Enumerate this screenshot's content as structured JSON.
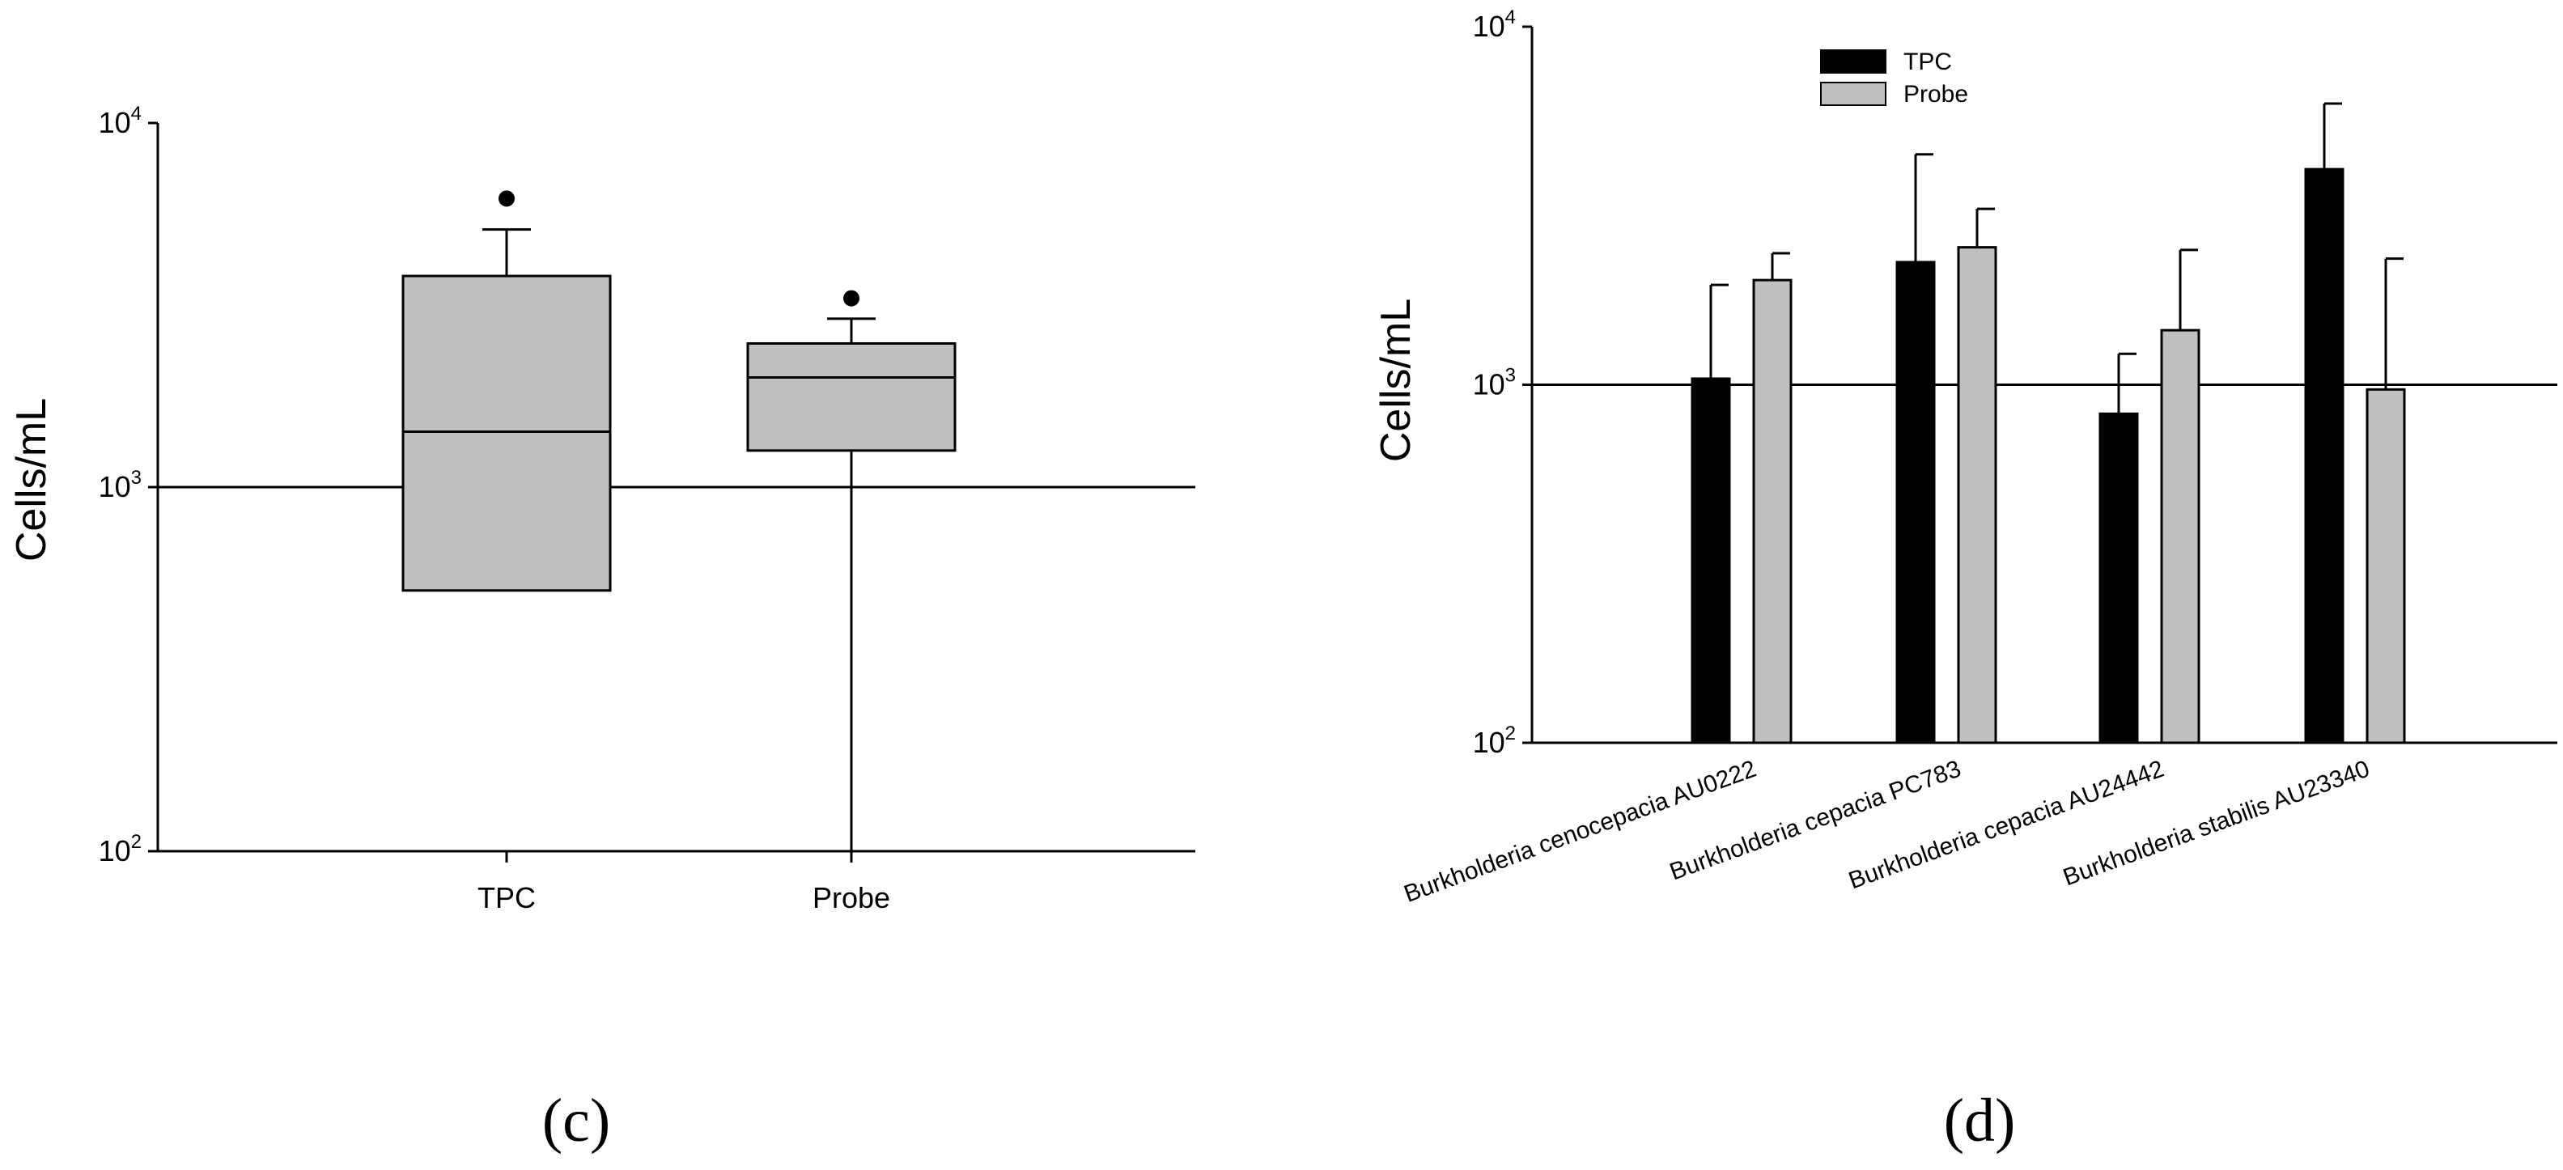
{
  "colors": {
    "tpc": "#000000",
    "probe": "#c0c0c0",
    "axis": "#000000"
  },
  "chart_data": [
    {
      "type": "box",
      "panel_label": "(c)",
      "ylabel": "Cells/mL",
      "yscale": "log",
      "ylim": [
        100,
        10000
      ],
      "yticks": [
        {
          "value": 100,
          "base": "10",
          "exp": "2"
        },
        {
          "value": 1000,
          "base": "10",
          "exp": "3"
        },
        {
          "value": 10000,
          "base": "10",
          "exp": "4"
        }
      ],
      "reference_line": 1000,
      "categories": [
        "TPC",
        "Probe"
      ],
      "boxes": [
        {
          "name": "TPC",
          "whisker_low": 520,
          "q1": 520,
          "median": 1420,
          "q3": 3800,
          "whisker_high": 5100,
          "outliers": [
            6200
          ]
        },
        {
          "name": "Probe",
          "whisker_low": 100,
          "q1": 1260,
          "median": 2000,
          "q3": 2480,
          "whisker_high": 2900,
          "outliers": [
            3300
          ]
        }
      ]
    },
    {
      "type": "bar",
      "panel_label": "(d)",
      "ylabel": "Cells/mL",
      "yscale": "log",
      "ylim": [
        100,
        10000
      ],
      "yticks": [
        {
          "value": 100,
          "base": "10",
          "exp": "2"
        },
        {
          "value": 1000,
          "base": "10",
          "exp": "3"
        },
        {
          "value": 10000,
          "base": "10",
          "exp": "4"
        }
      ],
      "reference_line": 1000,
      "legend_position": "top-left",
      "categories": [
        "Burkholderia cenocepacia AU0222",
        "Burkholderia cepacia PC783",
        "Burkholderia cepacia AU24442",
        "Burkholderia stabilis AU23340"
      ],
      "series": [
        {
          "name": "TPC",
          "values": [
            1040,
            2200,
            830,
            4000
          ],
          "error_upper": [
            1900,
            4400,
            1220,
            6100
          ]
        },
        {
          "name": "Probe",
          "values": [
            1960,
            2420,
            1420,
            970
          ],
          "error_upper": [
            2330,
            3100,
            2380,
            2250
          ]
        }
      ]
    }
  ]
}
